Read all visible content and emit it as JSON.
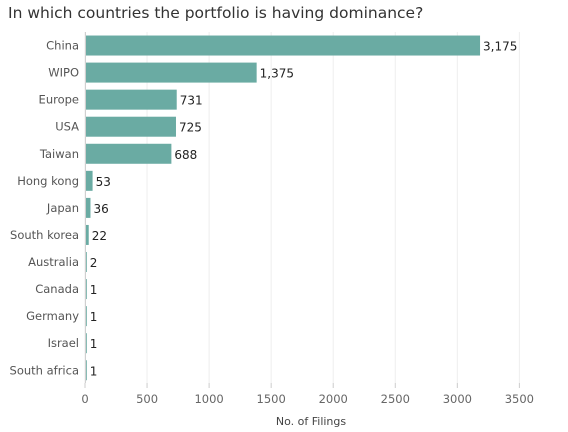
{
  "chart_data": {
    "type": "bar",
    "orientation": "horizontal",
    "title": "In which countries the portfolio is having dominance?",
    "xlabel": "No. of Filings",
    "ylabel": "",
    "categories": [
      "China",
      "WIPO",
      "Europe",
      "USA",
      "Taiwan",
      "Hong kong",
      "Japan",
      "South korea",
      "Australia",
      "Canada",
      "Germany",
      "Israel",
      "South africa"
    ],
    "values": [
      3175,
      1375,
      731,
      725,
      688,
      53,
      36,
      22,
      2,
      1,
      1,
      1,
      1
    ],
    "value_labels": [
      "3,175",
      "1,375",
      "731",
      "725",
      "688",
      "53",
      "36",
      "22",
      "2",
      "1",
      "1",
      "1",
      "1"
    ],
    "xlim": [
      0,
      3650
    ],
    "xticks": [
      0,
      500,
      1000,
      1500,
      2000,
      2500,
      3000,
      3500
    ],
    "grid": true,
    "bar_color": "#6aaba3"
  }
}
